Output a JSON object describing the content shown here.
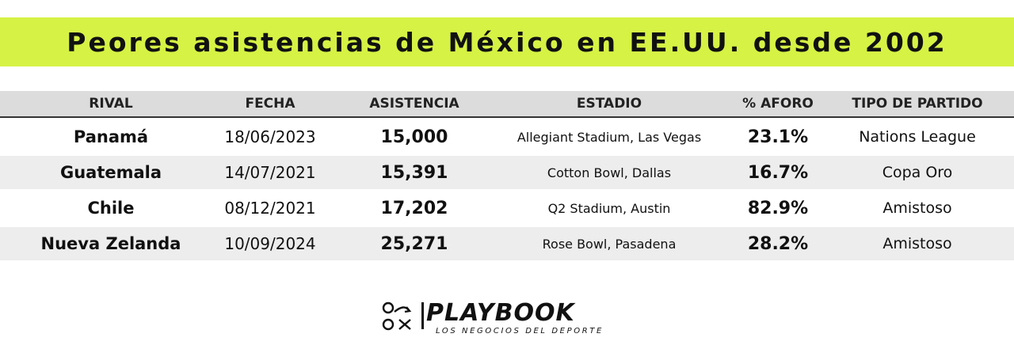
{
  "title": "Peores asistencias de México en EE.UU. desde 2002",
  "colors": {
    "banner": "#d6f244",
    "header_bg": "#dcdcdc",
    "shaded_row": "#ededed",
    "text": "#111111"
  },
  "table": {
    "headers": {
      "rival": "RIVAL",
      "fecha": "FECHA",
      "asistencia": "ASISTENCIA",
      "estadio": "ESTADIO",
      "aforo": "% AFORO",
      "tipo": "TIPO DE PARTIDO"
    },
    "rows": [
      {
        "rival": "Panamá",
        "fecha": "18/06/2023",
        "asistencia": "15,000",
        "estadio": "Allegiant Stadium, Las Vegas",
        "aforo": "23.1%",
        "tipo": "Nations League"
      },
      {
        "rival": "Guatemala",
        "fecha": "14/07/2021",
        "asistencia": "15,391",
        "estadio": "Cotton Bowl, Dallas",
        "aforo": "16.7%",
        "tipo": "Copa Oro"
      },
      {
        "rival": "Chile",
        "fecha": "08/12/2021",
        "asistencia": "17,202",
        "estadio": "Q2 Stadium, Austin",
        "aforo": "82.9%",
        "tipo": "Amistoso"
      },
      {
        "rival": "Nueva Zelanda",
        "fecha": "10/09/2024",
        "asistencia": "25,271",
        "estadio": "Rose Bowl, Pasadena",
        "aforo": "28.2%",
        "tipo": "Amistoso"
      }
    ]
  },
  "logo": {
    "name": "PLAYBOOK",
    "tagline": "LOS NEGOCIOS DEL DEPORTE",
    "icon": "playbook-play-diagram-icon"
  }
}
